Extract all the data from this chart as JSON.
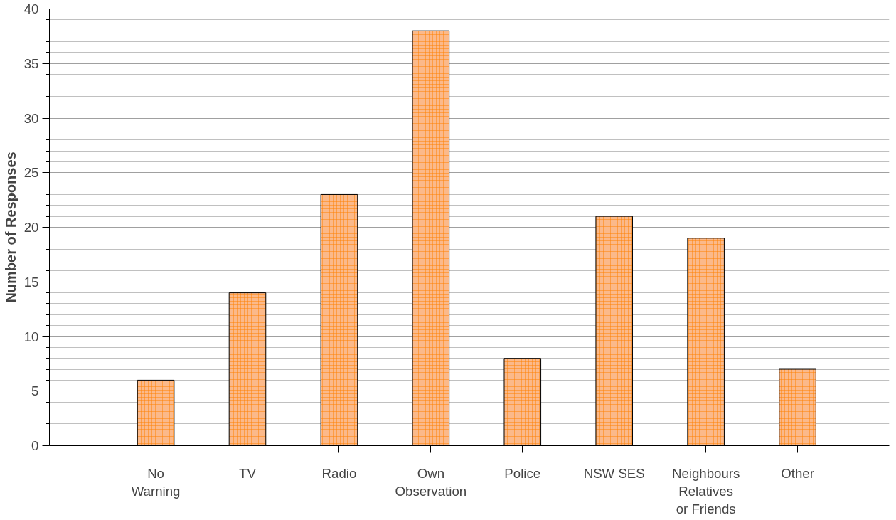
{
  "chart_data": {
    "type": "bar",
    "ylabel": "Number of Responses",
    "categories": [
      "No\nWarning",
      "TV",
      "Radio",
      "Own\nObservation",
      "Police",
      "NSW SES",
      "Neighbours\nRelatives\nor Friends",
      "Other"
    ],
    "values": [
      6,
      14,
      23,
      38,
      8,
      21,
      19,
      7
    ],
    "color": "#fbb98a",
    "ylim": [
      0,
      40
    ],
    "yticks": [
      0,
      5,
      10,
      15,
      20,
      25,
      30,
      35,
      40
    ],
    "grid": "y"
  }
}
